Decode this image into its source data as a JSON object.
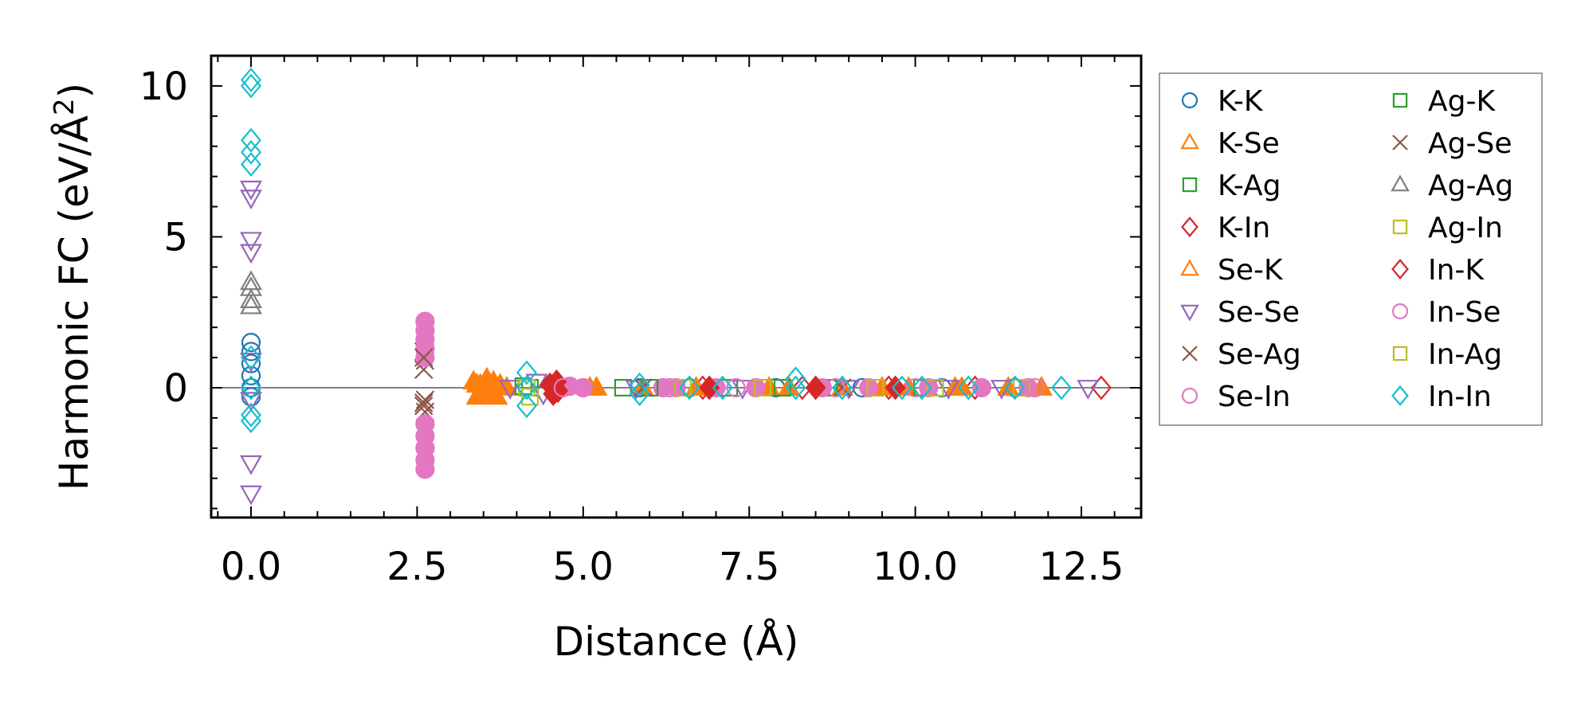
{
  "chart_data": {
    "type": "scatter",
    "xlabel": "Distance (Å)",
    "ylabel_main": "Harmonic FC (eV/Å",
    "ylabel_sup": "2",
    "ylabel_end": ")",
    "xlim": [
      -0.6,
      13.4
    ],
    "ylim": [
      -4.3,
      11.0
    ],
    "x_ticks": [
      {
        "value": 0.0,
        "label": "0.0"
      },
      {
        "value": 2.5,
        "label": "2.5"
      },
      {
        "value": 5.0,
        "label": "5.0"
      },
      {
        "value": 7.5,
        "label": "7.5"
      },
      {
        "value": 10.0,
        "label": "10.0"
      },
      {
        "value": 12.5,
        "label": "12.5"
      }
    ],
    "y_ticks": [
      {
        "value": 0,
        "label": "0"
      },
      {
        "value": 5,
        "label": "5"
      },
      {
        "value": 10,
        "label": "10"
      }
    ],
    "zero_line": 0,
    "legend_position": "outside-right",
    "series": [
      {
        "name": "K-K",
        "marker": "circle",
        "color": "#1f77b4",
        "filled": false,
        "points": [
          [
            0,
            1.5
          ],
          [
            0,
            1.2
          ],
          [
            0,
            0.8
          ],
          [
            0,
            0.4
          ],
          [
            0,
            0
          ],
          [
            0,
            -0.3
          ],
          [
            5.85,
            0
          ],
          [
            6.6,
            0
          ],
          [
            7.9,
            0
          ],
          [
            9.2,
            0
          ],
          [
            10.4,
            0
          ],
          [
            11.5,
            0
          ]
        ]
      },
      {
        "name": "K-Se",
        "marker": "triangle-up",
        "color": "#ff7f0e",
        "filled": true,
        "points": [
          [
            3.35,
            0.2
          ],
          [
            3.4,
            -0.3
          ],
          [
            3.45,
            0.1
          ],
          [
            3.5,
            -0.2
          ],
          [
            3.55,
            0.3
          ],
          [
            3.6,
            -0.1
          ],
          [
            3.65,
            0.2
          ],
          [
            3.7,
            -0.3
          ],
          [
            3.75,
            0.1
          ],
          [
            3.85,
            0
          ],
          [
            5.1,
            0
          ],
          [
            5.9,
            0
          ],
          [
            6.9,
            0
          ],
          [
            7.8,
            0
          ],
          [
            8.9,
            0
          ],
          [
            9.9,
            0
          ],
          [
            10.6,
            0
          ],
          [
            11.4,
            0
          ],
          [
            11.9,
            0
          ]
        ]
      },
      {
        "name": "K-Ag",
        "marker": "square",
        "color": "#2ca02c",
        "filled": false,
        "points": [
          [
            4.1,
            0.05
          ],
          [
            5.6,
            0
          ],
          [
            7.2,
            0
          ],
          [
            8.7,
            0
          ],
          [
            10.1,
            0
          ]
        ]
      },
      {
        "name": "K-In",
        "marker": "diamond",
        "color": "#d62728",
        "filled": false,
        "points": [
          [
            6.8,
            0
          ],
          [
            8.3,
            0
          ],
          [
            9.6,
            0
          ],
          [
            10.9,
            0
          ],
          [
            12.8,
            0
          ]
        ]
      },
      {
        "name": "Se-K",
        "marker": "triangle-up",
        "color": "#ff7f0e",
        "filled": true,
        "points": [
          [
            3.4,
            0.1
          ],
          [
            3.6,
            -0.2
          ],
          [
            5.2,
            0
          ],
          [
            6.7,
            0
          ],
          [
            8.1,
            0
          ],
          [
            9.5,
            0
          ],
          [
            10.7,
            0
          ]
        ]
      },
      {
        "name": "Se-Se",
        "marker": "triangle-down",
        "color": "#9467bd",
        "filled": false,
        "points": [
          [
            0,
            6.6
          ],
          [
            0,
            6.3
          ],
          [
            0,
            4.9
          ],
          [
            0,
            4.5
          ],
          [
            0,
            0.9
          ],
          [
            0,
            -0.4
          ],
          [
            0,
            -2.5
          ],
          [
            0,
            -3.5
          ],
          [
            3.9,
            0
          ],
          [
            4.3,
            0.2
          ],
          [
            4.4,
            -0.2
          ],
          [
            5.8,
            0
          ],
          [
            7.4,
            0
          ],
          [
            9.0,
            0
          ],
          [
            10.5,
            0
          ],
          [
            11.3,
            0
          ],
          [
            12.6,
            0
          ]
        ]
      },
      {
        "name": "Se-Ag",
        "marker": "cross",
        "color": "#8c564b",
        "filled": false,
        "points": [
          [
            2.6,
            1.2
          ],
          [
            2.62,
            0.9
          ],
          [
            2.6,
            0.6
          ],
          [
            2.62,
            -0.4
          ],
          [
            2.6,
            -0.6
          ],
          [
            2.62,
            -0.8
          ]
        ]
      },
      {
        "name": "Se-In",
        "marker": "circle",
        "color": "#e377c2",
        "filled": true,
        "points": [
          [
            2.62,
            2.2
          ],
          [
            2.62,
            1.9
          ],
          [
            2.62,
            1.6
          ],
          [
            2.62,
            1.3
          ],
          [
            2.62,
            1.0
          ],
          [
            2.62,
            -1.2
          ],
          [
            2.62,
            -1.6
          ],
          [
            2.62,
            -2.0
          ],
          [
            2.62,
            -2.4
          ],
          [
            2.62,
            -2.7
          ],
          [
            4.6,
            0
          ],
          [
            4.8,
            0.05
          ],
          [
            5.0,
            0
          ],
          [
            6.2,
            0
          ],
          [
            6.4,
            0
          ],
          [
            7.0,
            0
          ],
          [
            7.6,
            0
          ],
          [
            8.6,
            0
          ],
          [
            9.3,
            0
          ],
          [
            10.2,
            0
          ],
          [
            11.0,
            0
          ],
          [
            11.7,
            0
          ]
        ]
      },
      {
        "name": "Ag-K",
        "marker": "square",
        "color": "#2ca02c",
        "filled": false,
        "points": [
          [
            4.2,
            0
          ],
          [
            6.0,
            0
          ],
          [
            8.0,
            0
          ]
        ]
      },
      {
        "name": "Ag-Se",
        "marker": "cross",
        "color": "#8c564b",
        "filled": false,
        "points": [
          [
            2.6,
            1.0
          ],
          [
            2.6,
            -0.5
          ],
          [
            5.9,
            0
          ],
          [
            8.9,
            0
          ]
        ]
      },
      {
        "name": "Ag-Ag",
        "marker": "triangle-up",
        "color": "#7f7f7f",
        "filled": false,
        "points": [
          [
            0,
            3.5
          ],
          [
            0,
            3.3
          ],
          [
            0,
            2.9
          ],
          [
            0,
            2.7
          ]
        ]
      },
      {
        "name": "Ag-In",
        "marker": "square",
        "color": "#bcbd22",
        "filled": false,
        "points": [
          [
            4.2,
            -0.3
          ],
          [
            6.5,
            0
          ],
          [
            9.4,
            0
          ],
          [
            11.6,
            0
          ]
        ]
      },
      {
        "name": "In-K",
        "marker": "diamond",
        "color": "#d62728",
        "filled": true,
        "points": [
          [
            4.5,
            0.1
          ],
          [
            4.55,
            -0.2
          ],
          [
            4.6,
            0.2
          ],
          [
            4.62,
            -0.1
          ],
          [
            6.9,
            0
          ],
          [
            8.5,
            0
          ],
          [
            9.7,
            0
          ]
        ]
      },
      {
        "name": "In-Se",
        "marker": "circle",
        "color": "#e377c2",
        "filled": false,
        "points": [
          [
            4.7,
            0
          ],
          [
            5.0,
            0
          ],
          [
            6.3,
            0
          ],
          [
            7.3,
            0
          ],
          [
            8.8,
            0
          ],
          [
            10.0,
            0
          ],
          [
            11.8,
            0
          ]
        ]
      },
      {
        "name": "In-Ag",
        "marker": "square",
        "color": "#bcbd22",
        "filled": false,
        "points": [
          [
            4.15,
            0
          ],
          [
            7.7,
            0
          ],
          [
            10.3,
            0
          ]
        ]
      },
      {
        "name": "In-In",
        "marker": "diamond",
        "color": "#17becf",
        "filled": false,
        "points": [
          [
            0,
            10.2
          ],
          [
            0,
            10.0
          ],
          [
            0,
            8.2
          ],
          [
            0,
            7.8
          ],
          [
            0,
            7.4
          ],
          [
            0,
            1.0
          ],
          [
            0,
            0
          ],
          [
            0,
            -0.9
          ],
          [
            0,
            -1.1
          ],
          [
            4.15,
            0.5
          ],
          [
            4.15,
            0
          ],
          [
            4.15,
            -0.6
          ],
          [
            5.85,
            0.1
          ],
          [
            5.85,
            -0.2
          ],
          [
            6.6,
            0
          ],
          [
            7.1,
            0
          ],
          [
            8.2,
            0.3
          ],
          [
            8.2,
            0
          ],
          [
            8.9,
            0
          ],
          [
            9.8,
            0
          ],
          [
            10.1,
            0
          ],
          [
            10.8,
            0
          ],
          [
            11.5,
            0
          ],
          [
            12.2,
            0
          ]
        ]
      }
    ]
  }
}
